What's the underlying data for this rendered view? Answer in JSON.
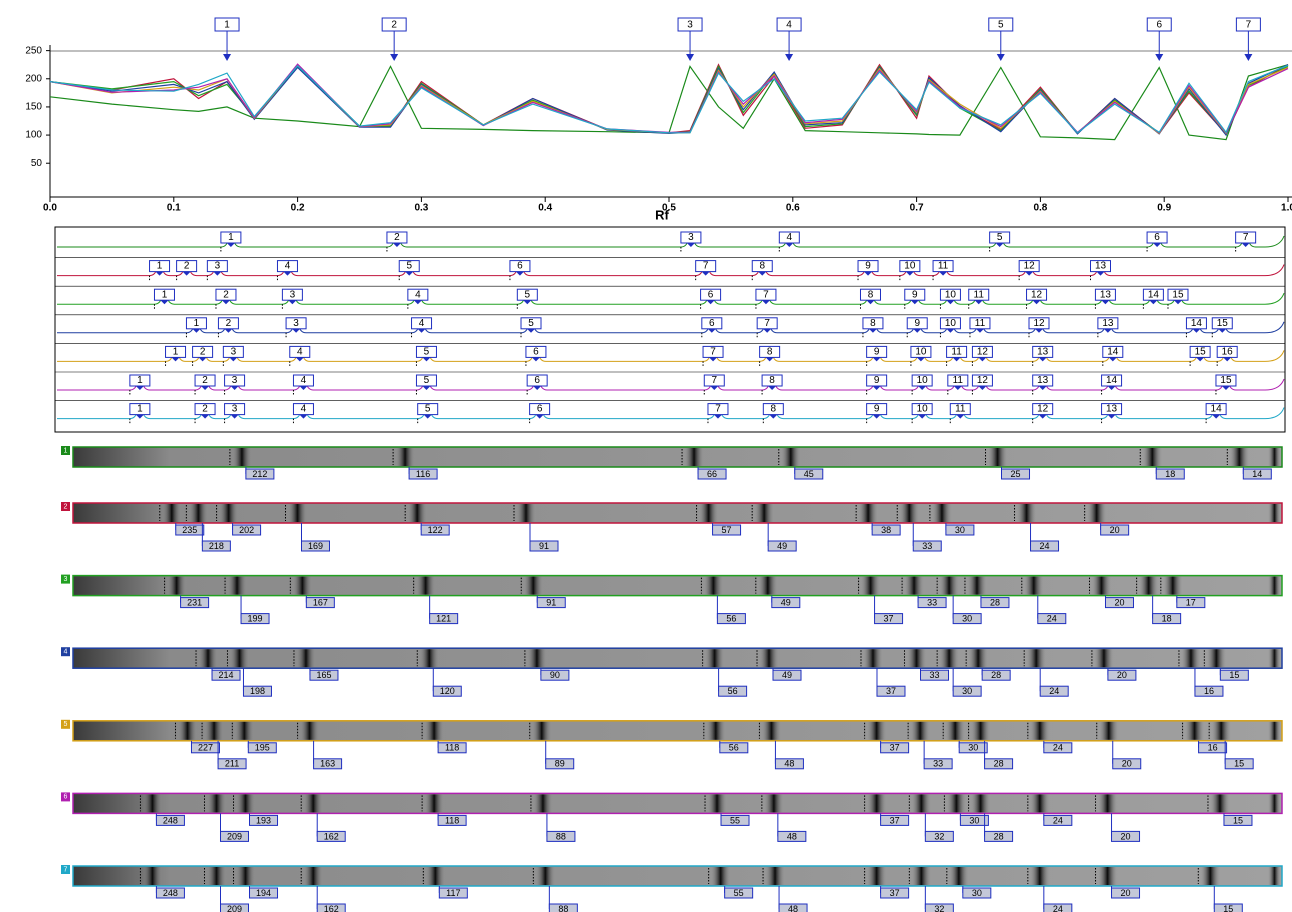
{
  "chart_data": {
    "type": "line",
    "x_label": "Rf",
    "xlim": [
      0,
      1
    ],
    "ylim": [
      -10,
      260
    ],
    "xticks": [
      {
        "value": 0,
        "label": "0.0"
      },
      0.1,
      0.2,
      0.3,
      0.4,
      0.5,
      0.6,
      0.7,
      0.8,
      0.9,
      {
        "value": 1,
        "label": "1.0"
      }
    ],
    "yticks": [
      50,
      100,
      150,
      200,
      250
    ],
    "markers": [
      {
        "label": "1",
        "x": 0.143
      },
      {
        "label": "2",
        "x": 0.278
      },
      {
        "label": "3",
        "x": 0.517
      },
      {
        "label": "4",
        "x": 0.597
      },
      {
        "label": "5",
        "x": 0.768
      },
      {
        "label": "6",
        "x": 0.896
      },
      {
        "label": "7",
        "x": 0.968
      }
    ],
    "x": [
      0,
      0.05,
      0.1,
      0.12,
      0.143,
      0.165,
      0.2,
      0.25,
      0.275,
      0.3,
      0.35,
      0.39,
      0.45,
      0.5,
      0.517,
      0.54,
      0.56,
      0.585,
      0.61,
      0.64,
      0.67,
      0.7,
      0.71,
      0.735,
      0.768,
      0.8,
      0.83,
      0.86,
      0.896,
      0.92,
      0.95,
      0.968,
      1.0
    ],
    "series": [
      {
        "color": "#1a8a1a",
        "values": [
          168,
          155,
          145,
          142,
          150,
          130,
          125,
          115,
          222,
          112,
          110,
          108,
          106,
          104,
          222,
          150,
          112,
          200,
          108,
          106,
          104,
          102,
          101,
          100,
          220,
          97,
          95,
          92,
          220,
          100,
          92,
          205,
          225
        ]
      },
      {
        "color": "#c0143c",
        "values": [
          195,
          180,
          200,
          165,
          195,
          130,
          225,
          115,
          115,
          195,
          118,
          165,
          110,
          104,
          108,
          225,
          135,
          205,
          112,
          118,
          225,
          130,
          205,
          150,
          110,
          185,
          103,
          165,
          103,
          175,
          102,
          185,
          225
        ]
      },
      {
        "color": "#22a022",
        "values": [
          195,
          182,
          195,
          170,
          190,
          132,
          222,
          116,
          116,
          192,
          118,
          162,
          110,
          104,
          106,
          222,
          140,
          210,
          115,
          120,
          222,
          135,
          200,
          148,
          108,
          182,
          104,
          162,
          104,
          178,
          102,
          188,
          222
        ]
      },
      {
        "color": "#1f3fa0",
        "values": [
          195,
          178,
          190,
          175,
          195,
          128,
          220,
          114,
          114,
          190,
          117,
          165,
          109,
          103,
          105,
          218,
          145,
          212,
          118,
          122,
          220,
          138,
          202,
          152,
          106,
          180,
          102,
          165,
          102,
          182,
          100,
          192,
          225
        ]
      },
      {
        "color": "#d4a017",
        "values": [
          195,
          175,
          185,
          180,
          200,
          130,
          224,
          115,
          118,
          188,
          118,
          160,
          110,
          104,
          104,
          215,
          150,
          208,
          120,
          125,
          218,
          140,
          198,
          155,
          112,
          178,
          104,
          160,
          103,
          185,
          103,
          190,
          220
        ]
      },
      {
        "color": "#b020b0",
        "values": [
          195,
          176,
          180,
          185,
          200,
          131,
          226,
          115,
          120,
          186,
          117,
          158,
          111,
          105,
          105,
          212,
          155,
          205,
          122,
          128,
          215,
          142,
          196,
          150,
          115,
          176,
          105,
          158,
          104,
          188,
          104,
          185,
          218
        ]
      },
      {
        "color": "#20a8c8",
        "values": [
          195,
          180,
          178,
          190,
          210,
          133,
          223,
          116,
          122,
          184,
          118,
          155,
          111,
          104,
          104,
          210,
          160,
          200,
          125,
          130,
          212,
          145,
          194,
          148,
          118,
          174,
          104,
          155,
          105,
          192,
          105,
          195,
          224
        ]
      }
    ]
  },
  "lanes": [
    {
      "id": "1",
      "color": "#1a8a1a",
      "staggered": false,
      "peaks": [
        0.143,
        0.278,
        0.517,
        0.597,
        0.768,
        0.896,
        0.968
      ],
      "peak_labels": [
        "1",
        "2",
        "3",
        "4",
        "5",
        "6",
        "7"
      ],
      "mw": [
        212,
        116,
        66,
        45,
        25,
        18,
        14
      ]
    },
    {
      "id": "2",
      "color": "#c0143c",
      "staggered": true,
      "peaks": [
        0.085,
        0.107,
        0.132,
        0.189,
        0.288,
        0.378,
        0.529,
        0.575,
        0.661,
        0.695,
        0.722,
        0.792,
        0.85
      ],
      "peak_labels": [
        "1",
        "2",
        "3",
        "4",
        "5",
        "6",
        "7",
        "8",
        "9",
        "10",
        "11",
        "12",
        "13"
      ],
      "mw": [
        235,
        218,
        202,
        169,
        122,
        91,
        57,
        49,
        38,
        33,
        30,
        24,
        20
      ]
    },
    {
      "id": "3",
      "color": "#22a022",
      "staggered": true,
      "peaks": [
        0.089,
        0.139,
        0.193,
        0.295,
        0.384,
        0.533,
        0.578,
        0.663,
        0.699,
        0.728,
        0.751,
        0.798,
        0.854,
        0.893,
        0.913
      ],
      "peak_labels": [
        "1",
        "2",
        "3",
        "4",
        "5",
        "6",
        "7",
        "8",
        "9",
        "10",
        "11",
        "12",
        "13",
        "14",
        "15"
      ],
      "mw": [
        231,
        199,
        167,
        121,
        91,
        56,
        49,
        37,
        33,
        30,
        28,
        24,
        20,
        18,
        17
      ]
    },
    {
      "id": "4",
      "color": "#1f3fa0",
      "staggered": true,
      "peaks": [
        0.115,
        0.141,
        0.196,
        0.298,
        0.387,
        0.534,
        0.579,
        0.665,
        0.701,
        0.728,
        0.752,
        0.8,
        0.856,
        0.928,
        0.949
      ],
      "peak_labels": [
        "1",
        "2",
        "3",
        "4",
        "5",
        "6",
        "7",
        "8",
        "9",
        "10",
        "11",
        "12",
        "13",
        "14",
        "15"
      ],
      "mw": [
        214,
        198,
        165,
        120,
        90,
        56,
        49,
        37,
        33,
        30,
        28,
        24,
        20,
        16,
        15
      ]
    },
    {
      "id": "5",
      "color": "#d4a017",
      "staggered": true,
      "peaks": [
        0.098,
        0.12,
        0.145,
        0.199,
        0.302,
        0.391,
        0.535,
        0.581,
        0.668,
        0.704,
        0.733,
        0.754,
        0.803,
        0.86,
        0.931,
        0.953
      ],
      "peak_labels": [
        "1",
        "2",
        "3",
        "4",
        "5",
        "6",
        "7",
        "8",
        "9",
        "10",
        "11",
        "12",
        "13",
        "14",
        "15",
        "16"
      ],
      "mw": [
        227,
        211,
        195,
        163,
        118,
        89,
        56,
        48,
        37,
        33,
        30,
        28,
        24,
        20,
        16,
        15
      ]
    },
    {
      "id": "6",
      "color": "#b020b0",
      "staggered": true,
      "peaks": [
        0.069,
        0.122,
        0.146,
        0.202,
        0.302,
        0.392,
        0.536,
        0.583,
        0.668,
        0.705,
        0.734,
        0.754,
        0.803,
        0.859,
        0.952
      ],
      "peak_labels": [
        "1",
        "2",
        "3",
        "4",
        "5",
        "6",
        "7",
        "8",
        "9",
        "10",
        "11",
        "12",
        "13",
        "14",
        "15"
      ],
      "mw": [
        248,
        209,
        193,
        162,
        118,
        88,
        55,
        48,
        37,
        32,
        30,
        28,
        24,
        20,
        15
      ]
    },
    {
      "id": "7",
      "color": "#20a8c8",
      "staggered": true,
      "peaks": [
        0.069,
        0.122,
        0.146,
        0.202,
        0.303,
        0.394,
        0.539,
        0.584,
        0.668,
        0.705,
        0.736,
        0.803,
        0.859,
        0.944
      ],
      "peak_labels": [
        "1",
        "2",
        "3",
        "4",
        "5",
        "6",
        "7",
        "8",
        "9",
        "10",
        "11",
        "12",
        "13",
        "14"
      ],
      "mw": [
        248,
        209,
        194,
        162,
        117,
        88,
        55,
        48,
        37,
        32,
        30,
        24,
        20,
        15
      ]
    }
  ]
}
